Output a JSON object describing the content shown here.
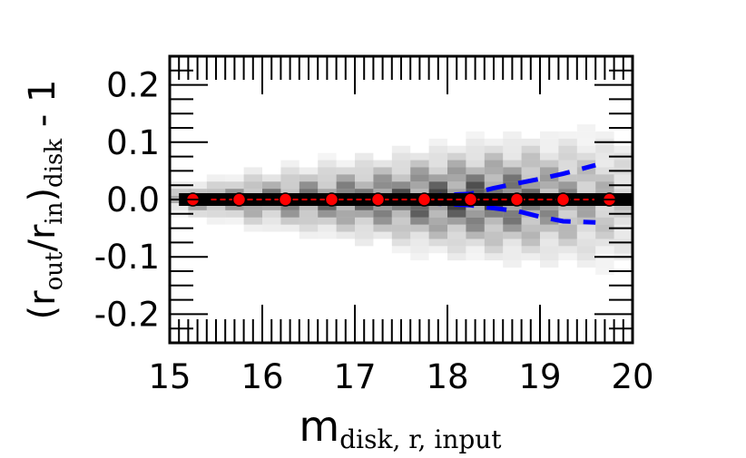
{
  "chart_data": {
    "type": "scatter",
    "title": "",
    "xlabel": {
      "base": "m",
      "sub": "disk, r, input"
    },
    "ylabel": {
      "open": "(r",
      "sub1": "out",
      "slash": "/r",
      "sub2": "in",
      "close": ")",
      "sub3": "disk",
      "suffix": " - 1"
    },
    "xlim": [
      15,
      20
    ],
    "ylim": [
      -0.25,
      0.25
    ],
    "xticks": [
      15,
      16,
      17,
      18,
      19,
      20
    ],
    "xtick_labels": [
      "15",
      "16",
      "17",
      "18",
      "19",
      "20"
    ],
    "yticks": [
      0.2,
      0.1,
      0.0,
      -0.1,
      -0.2
    ],
    "ytick_labels": [
      "0.2",
      "0.1",
      "0.0",
      "-0.1",
      "-0.2"
    ],
    "grid": false,
    "colors": {
      "points": "#ff0000",
      "median_line": "#ff0000",
      "scatter_band": "#0000ff",
      "zero_line": "#000000",
      "density": "#000000"
    },
    "median_points": {
      "x": [
        15.25,
        15.75,
        16.25,
        16.75,
        17.25,
        17.75,
        18.25,
        18.75,
        19.25,
        19.75
      ],
      "y": [
        0,
        0,
        0,
        0,
        0,
        0,
        0,
        0,
        0,
        0
      ]
    },
    "upper_band": {
      "x": [
        15.25,
        15.75,
        16.25,
        16.75,
        17.25,
        17.75,
        18.25,
        18.5,
        18.75,
        19.0,
        19.25,
        19.6
      ],
      "y": [
        0.002,
        0.002,
        0.002,
        0.003,
        0.004,
        0.006,
        0.01,
        0.02,
        0.028,
        0.036,
        0.045,
        0.06
      ]
    },
    "lower_band": {
      "x": [
        15.25,
        15.75,
        16.25,
        16.75,
        17.25,
        17.75,
        18.25,
        18.5,
        18.75,
        19.0,
        19.25,
        19.6
      ],
      "y": [
        -0.002,
        -0.002,
        -0.002,
        -0.003,
        -0.004,
        -0.006,
        -0.01,
        -0.015,
        -0.02,
        -0.03,
        -0.038,
        -0.04
      ]
    },
    "density_columns": [
      {
        "x": 15.1,
        "w": [
          0.35,
          0.25
        ]
      },
      {
        "x": 15.3,
        "w": [
          0.45,
          0.28
        ]
      },
      {
        "x": 15.5,
        "w": [
          0.5,
          0.3
        ]
      },
      {
        "x": 15.7,
        "w": [
          0.55,
          0.3
        ]
      },
      {
        "x": 15.9,
        "w": [
          0.55,
          0.32
        ]
      },
      {
        "x": 16.1,
        "w": [
          0.6,
          0.32
        ]
      },
      {
        "x": 16.3,
        "w": [
          0.6,
          0.34
        ]
      },
      {
        "x": 16.5,
        "w": [
          0.65,
          0.35
        ]
      },
      {
        "x": 16.7,
        "w": [
          0.65,
          0.36
        ]
      },
      {
        "x": 16.9,
        "w": [
          0.7,
          0.38
        ]
      },
      {
        "x": 17.1,
        "w": [
          0.7,
          0.4
        ]
      },
      {
        "x": 17.3,
        "w": [
          0.72,
          0.42
        ]
      },
      {
        "x": 17.5,
        "w": [
          0.75,
          0.45
        ]
      },
      {
        "x": 17.7,
        "w": [
          0.75,
          0.48
        ]
      },
      {
        "x": 17.9,
        "w": [
          0.78,
          0.5
        ]
      },
      {
        "x": 18.1,
        "w": [
          0.78,
          0.52
        ]
      },
      {
        "x": 18.3,
        "w": [
          0.8,
          0.55
        ]
      },
      {
        "x": 18.5,
        "w": [
          0.78,
          0.55
        ]
      },
      {
        "x": 18.7,
        "w": [
          0.72,
          0.52
        ]
      },
      {
        "x": 18.9,
        "w": [
          0.65,
          0.5
        ]
      },
      {
        "x": 19.1,
        "w": [
          0.55,
          0.45
        ]
      },
      {
        "x": 19.3,
        "w": [
          0.5,
          0.4
        ]
      },
      {
        "x": 19.5,
        "w": [
          0.4,
          0.35
        ]
      },
      {
        "x": 19.7,
        "w": [
          0.35,
          0.3
        ]
      },
      {
        "x": 19.9,
        "w": [
          0.25,
          0.25
        ]
      }
    ]
  }
}
